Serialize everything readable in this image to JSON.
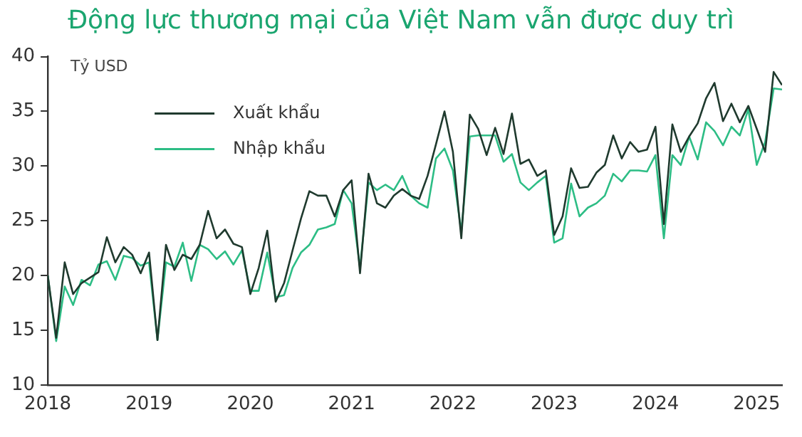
{
  "chart_data": {
    "type": "line",
    "title": "Động lực thương mại của Việt Nam vẫn được duy trì",
    "ylabel": "Tỷ USD",
    "x": [
      2018,
      2018.083,
      2018.167,
      2018.25,
      2018.333,
      2018.417,
      2018.5,
      2018.583,
      2018.667,
      2018.75,
      2018.833,
      2018.917,
      2019,
      2019.083,
      2019.167,
      2019.25,
      2019.333,
      2019.417,
      2019.5,
      2019.583,
      2019.667,
      2019.75,
      2019.833,
      2019.917,
      2020,
      2020.083,
      2020.167,
      2020.25,
      2020.333,
      2020.417,
      2020.5,
      2020.583,
      2020.667,
      2020.75,
      2020.833,
      2020.917,
      2021,
      2021.083,
      2021.167,
      2021.25,
      2021.333,
      2021.417,
      2021.5,
      2021.583,
      2021.667,
      2021.75,
      2021.833,
      2021.917,
      2022,
      2022.083,
      2022.167,
      2022.25,
      2022.333,
      2022.417,
      2022.5,
      2022.583,
      2022.667,
      2022.75,
      2022.833,
      2022.917,
      2023,
      2023.083,
      2023.167,
      2023.25,
      2023.333,
      2023.417,
      2023.5,
      2023.583,
      2023.667,
      2023.75,
      2023.833,
      2023.917,
      2024,
      2024.083,
      2024.167,
      2024.25,
      2024.333,
      2024.417,
      2024.5,
      2024.583,
      2024.667,
      2024.75,
      2024.833,
      2024.917,
      2025,
      2025.083,
      2025.167,
      2025.25
    ],
    "series": [
      {
        "name": "Xuất khẩu",
        "color": "#1f3a2e",
        "values": [
          20.0,
          14.3,
          21.2,
          18.3,
          19.3,
          19.8,
          20.3,
          23.5,
          21.2,
          22.6,
          21.9,
          20.2,
          22.1,
          14.1,
          22.8,
          20.5,
          21.9,
          21.5,
          22.8,
          25.9,
          23.4,
          24.2,
          22.9,
          22.6,
          18.3,
          20.7,
          24.1,
          17.6,
          19.3,
          22.3,
          25.2,
          27.7,
          27.3,
          27.3,
          25.4,
          27.8,
          28.7,
          20.2,
          29.3,
          26.6,
          26.2,
          27.3,
          27.9,
          27.3,
          27.0,
          29.1,
          32.0,
          35.0,
          31.3,
          23.4,
          34.7,
          33.4,
          31.0,
          33.5,
          31.1,
          34.8,
          30.2,
          30.6,
          29.1,
          29.6,
          23.7,
          25.4,
          29.8,
          28.0,
          28.1,
          29.4,
          30.1,
          32.8,
          30.7,
          32.2,
          31.3,
          31.5,
          33.6,
          24.7,
          33.8,
          31.3,
          32.7,
          33.9,
          36.2,
          37.6,
          34.1,
          35.7,
          34.0,
          35.5,
          33.4,
          31.3,
          38.6,
          37.4
        ]
      },
      {
        "name": "Nhập khẩu",
        "color": "#2dbd85",
        "values": [
          20.0,
          14.0,
          19.0,
          17.3,
          19.6,
          19.1,
          21.0,
          21.3,
          19.6,
          21.8,
          21.6,
          20.9,
          21.2,
          14.1,
          21.2,
          20.8,
          23.0,
          19.5,
          22.8,
          22.4,
          21.5,
          22.2,
          21.0,
          22.3,
          18.6,
          18.6,
          22.1,
          18.0,
          18.2,
          20.7,
          22.1,
          22.8,
          24.2,
          24.4,
          24.7,
          27.8,
          26.6,
          20.7,
          28.5,
          27.8,
          28.3,
          27.8,
          29.1,
          27.3,
          26.6,
          26.2,
          30.7,
          31.6,
          29.6,
          24.0,
          32.7,
          32.8,
          32.8,
          32.8,
          30.4,
          31.1,
          28.5,
          27.8,
          28.5,
          29.1,
          23.0,
          23.4,
          28.4,
          25.4,
          26.2,
          26.6,
          27.3,
          29.3,
          28.6,
          29.6,
          29.6,
          29.5,
          31.0,
          23.4,
          31.0,
          30.1,
          32.7,
          30.6,
          34.0,
          33.2,
          31.9,
          33.6,
          32.8,
          35.2,
          30.1,
          32.2,
          37.1,
          37.0
        ]
      }
    ],
    "xlim": [
      2018,
      2025.25
    ],
    "xticks": [
      2018,
      2019,
      2020,
      2021,
      2022,
      2023,
      2024,
      2025
    ],
    "ylim": [
      10,
      40
    ],
    "yticks": [
      10,
      15,
      20,
      25,
      30,
      35,
      40
    ],
    "grid": false,
    "legend": "top left",
    "marker": "none",
    "line_style": "solid"
  }
}
